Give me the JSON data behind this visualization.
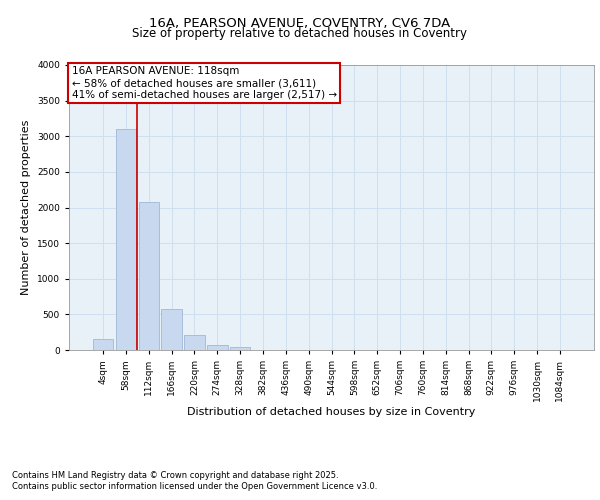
{
  "title_line1": "16A, PEARSON AVENUE, COVENTRY, CV6 7DA",
  "title_line2": "Size of property relative to detached houses in Coventry",
  "xlabel": "Distribution of detached houses by size in Coventry",
  "ylabel": "Number of detached properties",
  "bar_color": "#c8d8ee",
  "bar_edge_color": "#a0b8d8",
  "grid_color": "#d0dff0",
  "background_color": "#e8f0f8",
  "categories": [
    "4sqm",
    "58sqm",
    "112sqm",
    "166sqm",
    "220sqm",
    "274sqm",
    "328sqm",
    "382sqm",
    "436sqm",
    "490sqm",
    "544sqm",
    "598sqm",
    "652sqm",
    "706sqm",
    "760sqm",
    "814sqm",
    "868sqm",
    "922sqm",
    "976sqm",
    "1030sqm",
    "1084sqm"
  ],
  "values": [
    160,
    3100,
    2080,
    580,
    210,
    65,
    40,
    0,
    0,
    0,
    0,
    0,
    0,
    0,
    0,
    0,
    0,
    0,
    0,
    0,
    0
  ],
  "ylim": [
    0,
    4000
  ],
  "yticks": [
    0,
    500,
    1000,
    1500,
    2000,
    2500,
    3000,
    3500,
    4000
  ],
  "property_label": "16A PEARSON AVENUE: 118sqm",
  "annotation_line1": "← 58% of detached houses are smaller (3,611)",
  "annotation_line2": "41% of semi-detached houses are larger (2,517) →",
  "annotation_box_color": "#ffffff",
  "annotation_box_edge": "#cc0000",
  "vline_color": "#cc0000",
  "vline_pos": 1.5,
  "footer_line1": "Contains HM Land Registry data © Crown copyright and database right 2025.",
  "footer_line2": "Contains public sector information licensed under the Open Government Licence v3.0.",
  "title_fontsize": 9.5,
  "subtitle_fontsize": 8.5,
  "axis_label_fontsize": 8,
  "tick_fontsize": 6.5,
  "annotation_fontsize": 7.5,
  "footer_fontsize": 6
}
